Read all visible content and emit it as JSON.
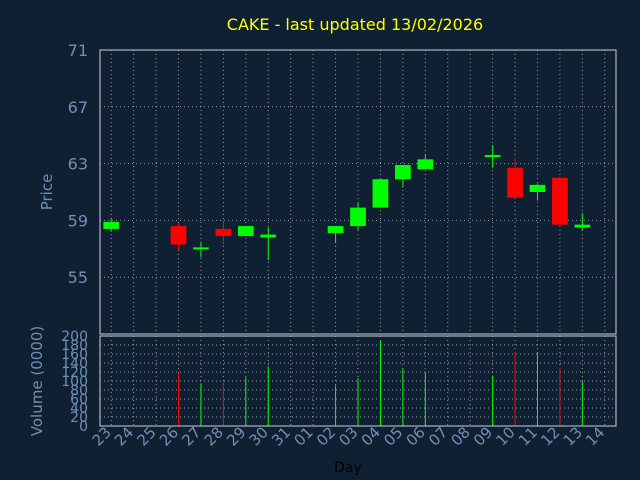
{
  "colors": {
    "background": "#102033",
    "title": "#ffff00",
    "axis_text": "#6f8fb5",
    "grid": "#c8d0d8",
    "frame": "#c8d0d8",
    "up": "#00ff00",
    "down": "#ff0000"
  },
  "chart_data": {
    "type": "candlestick",
    "title": "CAKE - last updated 13/02/2026",
    "xlabel": "Day",
    "price_panel": {
      "ylabel": "Price",
      "ylim": [
        51,
        71
      ],
      "yticks": [
        "71",
        "67",
        "63",
        "59",
        "55"
      ],
      "grid": true
    },
    "volume_panel": {
      "ylabel": "Volume (0000)",
      "ylim": [
        0,
        200
      ],
      "yticks": [
        "200",
        "180",
        "160",
        "140",
        "120",
        "100",
        "80",
        "60",
        "40",
        "20",
        "0"
      ],
      "grid": true
    },
    "x_ticks": [
      "23",
      "24",
      "25",
      "26",
      "27",
      "28",
      "29",
      "30",
      "31",
      "01",
      "02",
      "03",
      "04",
      "05",
      "06",
      "07",
      "08",
      "09",
      "10",
      "11",
      "12",
      "13",
      "14"
    ],
    "candles": [
      {
        "day": "23",
        "open": 58.4,
        "high": 59.1,
        "low": 58.2,
        "close": 58.9,
        "volume": 0
      },
      {
        "day": "26",
        "open": 58.6,
        "high": 58.8,
        "low": 56.9,
        "close": 57.3,
        "volume": 118
      },
      {
        "day": "27",
        "open": 57.0,
        "high": 57.5,
        "low": 56.4,
        "close": 57.1,
        "volume": 95
      },
      {
        "day": "28",
        "open": 58.4,
        "high": 59.0,
        "low": 57.3,
        "close": 57.9,
        "volume": 98
      },
      {
        "day": "29",
        "open": 57.9,
        "high": 58.6,
        "low": 57.9,
        "close": 58.6,
        "volume": 108
      },
      {
        "day": "30",
        "open": 57.8,
        "high": 58.5,
        "low": 56.2,
        "close": 58.0,
        "volume": 132
      },
      {
        "day": "02",
        "open": 58.1,
        "high": 58.6,
        "low": 57.4,
        "close": 58.6,
        "volume": 90
      },
      {
        "day": "03",
        "open": 58.6,
        "high": 60.3,
        "low": 58.3,
        "close": 59.9,
        "volume": 106
      },
      {
        "day": "04",
        "open": 59.9,
        "high": 61.9,
        "low": 59.9,
        "close": 61.9,
        "volume": 190
      },
      {
        "day": "05",
        "open": 61.9,
        "high": 62.9,
        "low": 61.3,
        "close": 62.9,
        "volume": 128
      },
      {
        "day": "06",
        "open": 62.6,
        "high": 63.6,
        "low": 62.6,
        "close": 63.3,
        "volume": 118
      },
      {
        "day": "09",
        "open": 63.5,
        "high": 64.3,
        "low": 62.7,
        "close": 63.6,
        "volume": 112
      },
      {
        "day": "10",
        "open": 62.7,
        "high": 63.4,
        "low": 60.6,
        "close": 60.6,
        "volume": 165
      },
      {
        "day": "11",
        "open": 61.0,
        "high": 61.6,
        "low": 60.4,
        "close": 61.5,
        "volume": 162
      },
      {
        "day": "12",
        "open": 62.0,
        "high": 62.1,
        "low": 58.6,
        "close": 58.7,
        "volume": 130
      },
      {
        "day": "13",
        "open": 58.5,
        "high": 59.5,
        "low": 58.3,
        "close": 58.7,
        "volume": 100
      }
    ]
  }
}
